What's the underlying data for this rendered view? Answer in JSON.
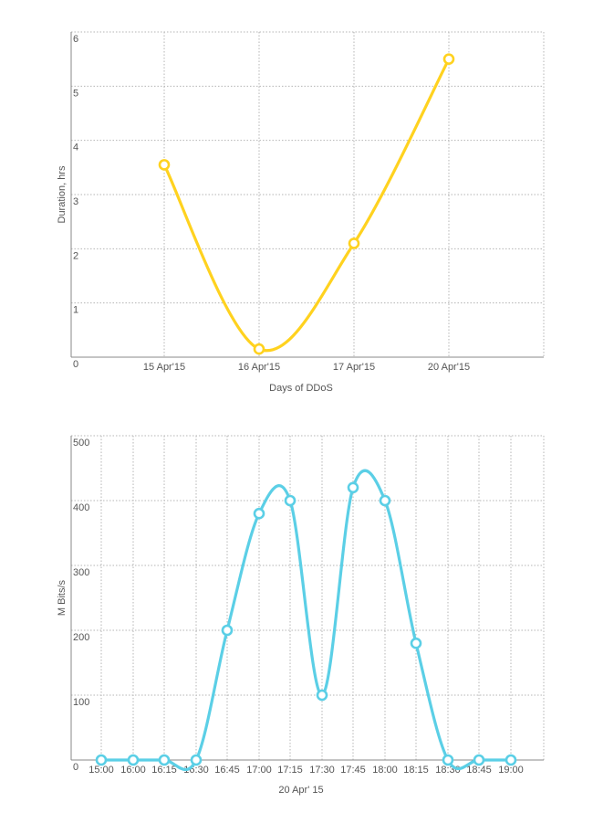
{
  "chart_data": [
    {
      "type": "line",
      "categories": [
        "15 Apr'15",
        "16 Apr'15",
        "17 Apr'15",
        "20 Apr'15"
      ],
      "series": [
        {
          "values": [
            3.55,
            0.15,
            2.1,
            5.5
          ],
          "color": "#ffd21f"
        }
      ],
      "xlabel": "Days of DDoS",
      "ylabel": "Duration, hrs",
      "ylim": [
        0,
        6
      ],
      "yticks": [
        "0",
        "1",
        "2",
        "3",
        "4",
        "5",
        "6"
      ],
      "grid": true,
      "legend": "none"
    },
    {
      "type": "line",
      "categories": [
        "15:00",
        "16:00",
        "16:15",
        "16:30",
        "16:45",
        "17:00",
        "17:15",
        "17:30",
        "17:45",
        "18:00",
        "18:15",
        "18:30",
        "18:45",
        "19:00"
      ],
      "series": [
        {
          "values": [
            0,
            0,
            0,
            0,
            200,
            380,
            400,
            100,
            420,
            400,
            180,
            0,
            0,
            0
          ],
          "color": "#5bcfe6"
        }
      ],
      "xlabel": "20 Apr' 15",
      "ylabel": "M Bits/s",
      "ylim": [
        0,
        500
      ],
      "yticks": [
        "0",
        "100",
        "200",
        "300",
        "400",
        "500"
      ],
      "grid": true,
      "legend": "none"
    }
  ]
}
